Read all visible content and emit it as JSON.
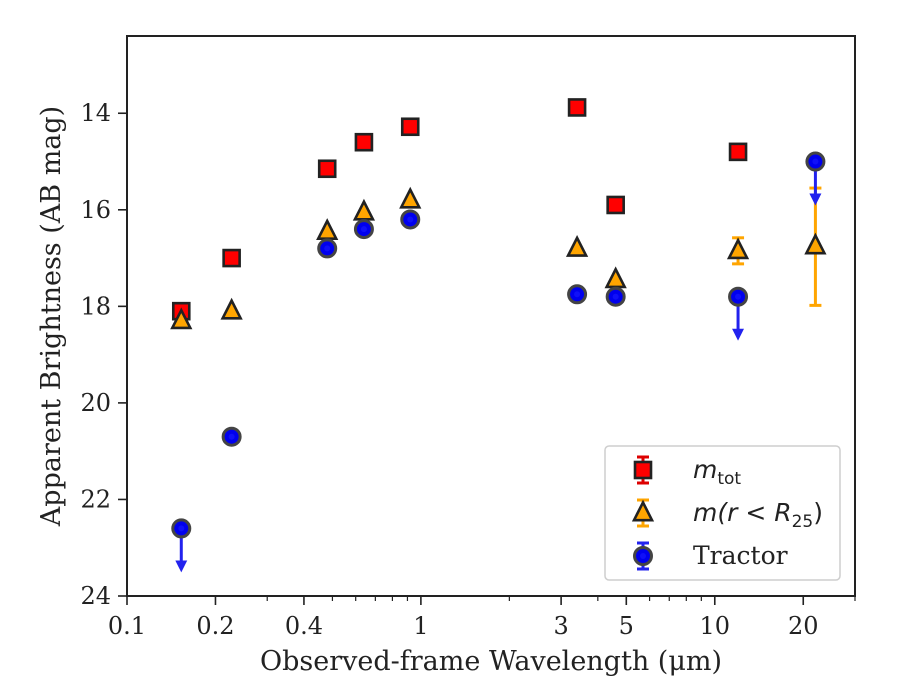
{
  "chart_data": {
    "type": "scatter",
    "title": "",
    "xlabel": "Observed-frame Wavelength (μm)",
    "ylabel": "Apparent Brightness (AB mag)",
    "xscale": "log",
    "xlim": [
      0.1,
      30
    ],
    "ylim": [
      24,
      12.4
    ],
    "y_inverted": true,
    "grid": false,
    "legend_position": "bottom-right",
    "x_ticks": [
      {
        "value": 0.1,
        "label": "0.1"
      },
      {
        "value": 0.2,
        "label": "0.2"
      },
      {
        "value": 0.4,
        "label": "0.4"
      },
      {
        "value": 1,
        "label": "1"
      },
      {
        "value": 3,
        "label": "3"
      },
      {
        "value": 5,
        "label": "5"
      },
      {
        "value": 10,
        "label": "10"
      },
      {
        "value": 20,
        "label": "20"
      }
    ],
    "x_minor_ticks": [
      0.3,
      0.5,
      0.6,
      0.7,
      0.8,
      0.9,
      2,
      4,
      6,
      7,
      8,
      9,
      30
    ],
    "y_ticks": [
      {
        "value": 14,
        "label": "14"
      },
      {
        "value": 16,
        "label": "16"
      },
      {
        "value": 18,
        "label": "18"
      },
      {
        "value": 20,
        "label": "20"
      },
      {
        "value": 22,
        "label": "22"
      },
      {
        "value": 24,
        "label": "24"
      }
    ],
    "series": [
      {
        "name": "m_tot",
        "label_main": "m",
        "label_sub": "tot",
        "marker": "square",
        "color": "#ff0000",
        "edge_color": "#222222",
        "points": [
          {
            "x": 0.153,
            "y": 18.1
          },
          {
            "x": 0.227,
            "y": 17.0
          },
          {
            "x": 0.48,
            "y": 15.15
          },
          {
            "x": 0.64,
            "y": 14.6
          },
          {
            "x": 0.92,
            "y": 14.28
          },
          {
            "x": 3.4,
            "y": 13.88
          },
          {
            "x": 4.6,
            "y": 15.9
          },
          {
            "x": 12.0,
            "y": 14.8
          }
        ]
      },
      {
        "name": "m(r < R_25)",
        "label_main": "m(r < R",
        "label_sub": "25",
        "label_end": ")",
        "marker": "triangle",
        "color": "#ffa500",
        "edge_color": "#222222",
        "points": [
          {
            "x": 0.153,
            "y": 18.3
          },
          {
            "x": 0.227,
            "y": 18.1
          },
          {
            "x": 0.48,
            "y": 16.45
          },
          {
            "x": 0.64,
            "y": 16.05
          },
          {
            "x": 0.92,
            "y": 15.8
          },
          {
            "x": 3.4,
            "y": 16.8
          },
          {
            "x": 4.6,
            "y": 17.45
          },
          {
            "x": 12.0,
            "y": 16.85,
            "err": 0.27
          },
          {
            "x": 22.0,
            "y": 16.75,
            "err_low": 1.23,
            "err_high": 1.2
          }
        ]
      },
      {
        "name": "Tractor",
        "marker": "circle",
        "color": "#0000ee",
        "edge_color": "#444444",
        "points": [
          {
            "x": 0.153,
            "y": 22.6,
            "upper_limit": true
          },
          {
            "x": 0.227,
            "y": 20.7
          },
          {
            "x": 0.48,
            "y": 16.8
          },
          {
            "x": 0.64,
            "y": 16.4
          },
          {
            "x": 0.92,
            "y": 16.2
          },
          {
            "x": 3.4,
            "y": 17.75
          },
          {
            "x": 4.6,
            "y": 17.8
          },
          {
            "x": 12.0,
            "y": 17.8,
            "upper_limit": true
          },
          {
            "x": 22.0,
            "y": 15.0,
            "upper_limit": true
          }
        ]
      }
    ]
  }
}
